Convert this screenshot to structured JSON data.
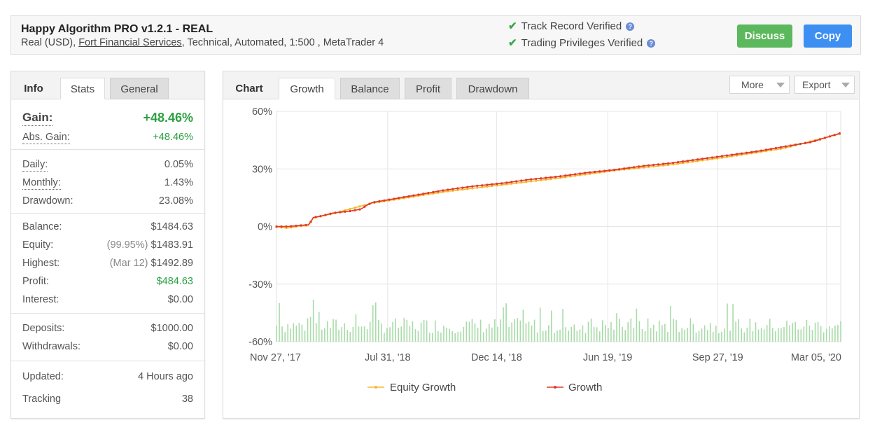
{
  "header": {
    "title": "Happy Algorithm PRO v1.2.1 - REAL",
    "sub_prefix": "Real (USD), ",
    "broker": "Fort Financial Services",
    "sub_suffix": ", Technical, Automated, 1:500 , MetaTrader 4",
    "verified_track": "Track Record Verified",
    "verified_privileges": "Trading Privileges Verified",
    "help_glyph": "?",
    "discuss_label": "Discuss",
    "copy_label": "Copy"
  },
  "left_tabs": {
    "info": "Info",
    "stats": "Stats",
    "general": "General"
  },
  "stats": {
    "gain_label": "Gain:",
    "gain_value": "+48.46%",
    "abs_gain_label": "Abs. Gain:",
    "abs_gain_value": "+48.46%",
    "daily_label": "Daily:",
    "daily_value": "0.05%",
    "monthly_label": "Monthly:",
    "monthly_value": "1.43%",
    "drawdown_label": "Drawdown:",
    "drawdown_value": "23.08%",
    "balance_label": "Balance:",
    "balance_value": "$1484.63",
    "equity_label": "Equity:",
    "equity_pct": "(99.95%)",
    "equity_value": "$1483.91",
    "highest_label": "Highest:",
    "highest_date": "(Mar 12)",
    "highest_value": "$1492.89",
    "profit_label": "Profit:",
    "profit_value": "$484.63",
    "interest_label": "Interest:",
    "interest_value": "$0.00",
    "deposits_label": "Deposits:",
    "deposits_value": "$1000.00",
    "withdrawals_label": "Withdrawals:",
    "withdrawals_value": "$0.00",
    "updated_label": "Updated:",
    "updated_value": "4 Hours ago",
    "tracking_label": "Tracking",
    "tracking_value": "38"
  },
  "chart_tabs": {
    "chart": "Chart",
    "growth": "Growth",
    "balance": "Balance",
    "profit": "Profit",
    "drawdown": "Drawdown",
    "more": "More",
    "export": "Export"
  },
  "colors": {
    "growth": "#e03a2a",
    "equity": "#f5b82e",
    "volume": "#a8dba8",
    "grid": "#e6e6e6"
  },
  "chart_data": {
    "type": "line",
    "title": "",
    "ylabel": "",
    "xlabel": "",
    "ylim": [
      -60,
      60
    ],
    "yticks": [
      "60%",
      "30%",
      "0%",
      "-30%",
      "-60%"
    ],
    "ytick_values": [
      60,
      30,
      0,
      -30,
      -60
    ],
    "xticks": [
      "Nov 27, '17",
      "Jul 31, '18",
      "Dec 14, '18",
      "Jun 19, '19",
      "Sep 27, '19",
      "Mar 05, '20"
    ],
    "legend": [
      "Equity Growth",
      "Growth"
    ],
    "legend_position": "bottom",
    "grid": true,
    "series": [
      {
        "name": "Growth",
        "points": [
          [
            0,
            0
          ],
          [
            0.02,
            0
          ],
          [
            0.04,
            0.5
          ],
          [
            0.06,
            1
          ],
          [
            0.062,
            4.5
          ],
          [
            0.08,
            5.5
          ],
          [
            0.1,
            7
          ],
          [
            0.13,
            8
          ],
          [
            0.15,
            9
          ],
          [
            0.16,
            11
          ],
          [
            0.17,
            12.5
          ],
          [
            0.2,
            14
          ],
          [
            0.25,
            16.5
          ],
          [
            0.3,
            19
          ],
          [
            0.35,
            21
          ],
          [
            0.4,
            22.5
          ],
          [
            0.45,
            24.5
          ],
          [
            0.5,
            26
          ],
          [
            0.55,
            28
          ],
          [
            0.6,
            29.5
          ],
          [
            0.65,
            31.5
          ],
          [
            0.7,
            33
          ],
          [
            0.75,
            35
          ],
          [
            0.8,
            37
          ],
          [
            0.85,
            39
          ],
          [
            0.9,
            41.5
          ],
          [
            0.95,
            44
          ],
          [
            1.0,
            46.5
          ],
          [
            0.98,
            48.5
          ]
        ]
      },
      {
        "name": "Equity Growth",
        "points": [
          [
            0,
            0
          ],
          [
            0.02,
            -0.5
          ],
          [
            0.04,
            0.5
          ],
          [
            0.06,
            1
          ],
          [
            0.062,
            4.5
          ],
          [
            0.1,
            7
          ],
          [
            0.17,
            12.5
          ],
          [
            0.3,
            18.5
          ],
          [
            0.4,
            22
          ],
          [
            0.5,
            25.5
          ],
          [
            0.6,
            29.5
          ],
          [
            0.7,
            32.5
          ],
          [
            0.8,
            36.5
          ],
          [
            0.9,
            41
          ],
          [
            1.0,
            48.5
          ]
        ]
      }
    ]
  }
}
